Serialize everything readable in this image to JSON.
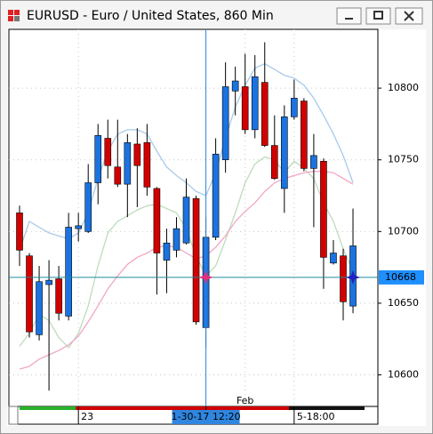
{
  "chart_data": {
    "type": "candlestick",
    "title": "EURUSD - Euro / United States, 860 Min",
    "categories": [
      null,
      null,
      null,
      null,
      null,
      null,
      "23",
      null,
      null,
      null,
      null,
      null,
      null,
      null,
      null,
      null,
      null,
      null,
      null,
      "1-30-17 12:20",
      null,
      null,
      null,
      null,
      null,
      null,
      null,
      null,
      "5-18:00",
      null,
      null,
      null,
      null,
      null,
      null
    ],
    "open": [
      10713,
      10683,
      10628,
      10663,
      10667,
      10641,
      10702,
      10700,
      10734,
      10765,
      10745,
      10733,
      10761,
      10762,
      10730,
      10680,
      10687,
      10692,
      10723,
      10633,
      10696,
      10750,
      10798,
      10801,
      10771,
      10804,
      10760,
      10730,
      10780,
      10791,
      10744,
      10749,
      10678,
      10683,
      10648
    ],
    "high": [
      10718,
      10685,
      10676,
      10680,
      10676,
      10713,
      10713,
      10747,
      10775,
      10778,
      10778,
      10768,
      10772,
      10775,
      10731,
      10702,
      10710,
      10737,
      10725,
      10710,
      10765,
      10818,
      10815,
      10824,
      10823,
      10832,
      10781,
      10788,
      10806,
      10793,
      10768,
      10751,
      10694,
      10688,
      10716
    ],
    "low": [
      10676,
      10626,
      10624,
      10589,
      10638,
      10638,
      10693,
      10699,
      10719,
      10737,
      10731,
      10710,
      10717,
      10725,
      10656,
      10657,
      10682,
      10691,
      10635,
      10619,
      10694,
      10741,
      10781,
      10768,
      10765,
      10759,
      10736,
      10713,
      10778,
      10742,
      10703,
      10660,
      10677,
      10638,
      10643
    ],
    "close": [
      10687,
      10630,
      10665,
      10666,
      10643,
      10703,
      10704,
      10734,
      10767,
      10746,
      10733,
      10762,
      10746,
      10731,
      10685,
      10692,
      10702,
      10724,
      10637,
      10696,
      10754,
      10801,
      10805,
      10771,
      10808,
      10760,
      10737,
      10780,
      10793,
      10744,
      10753,
      10682,
      10685,
      10651,
      10690
    ],
    "up_color": "#1a73e0",
    "down_color": "#d20000",
    "series": [
      {
        "color": "#a9c9ea",
        "values": [
          10687,
          10707,
          10703,
          10699,
          10697,
          10695,
          10699,
          10713,
          10737,
          10756,
          10768,
          10771,
          10771,
          10768,
          10756,
          10745,
          10739,
          10734,
          10728,
          10725,
          10741,
          10765,
          10787,
          10802,
          10814,
          10817,
          10813,
          10809,
          10807,
          10802,
          10793,
          10781,
          10768,
          10753,
          10734
        ]
      },
      {
        "color": "#bcdcbc",
        "values": [
          10620,
          10629,
          10642,
          10638,
          10626,
          10619,
          10629,
          10648,
          10676,
          10699,
          10707,
          10711,
          10715,
          10718,
          10719,
          10716,
          10713,
          10702,
          10683,
          10669,
          10676,
          10694,
          10713,
          10734,
          10747,
          10752,
          10750,
          10741,
          10749,
          10744,
          10737,
          10720,
          10707,
          10688,
          10672
        ]
      },
      {
        "color": "#f2a6c6",
        "values": [
          10604,
          10606,
          10611,
          10614,
          10617,
          10621,
          10627,
          10637,
          10648,
          10660,
          10669,
          10677,
          10682,
          10685,
          10689,
          10690,
          10689,
          10685,
          10681,
          10683,
          10689,
          10697,
          10707,
          10714,
          10720,
          10728,
          10734,
          10737,
          10739,
          10741,
          10742,
          10742,
          10741,
          10737,
          10733
        ]
      }
    ],
    "annotations": [
      {
        "text": "Feb",
        "index": 23
      }
    ],
    "crosshair": {
      "index": 19,
      "value": 10668
    },
    "ylim": [
      10578,
      10841
    ],
    "yticks": [
      10600,
      10650,
      10700,
      10750,
      10800
    ],
    "grid": true
  }
}
